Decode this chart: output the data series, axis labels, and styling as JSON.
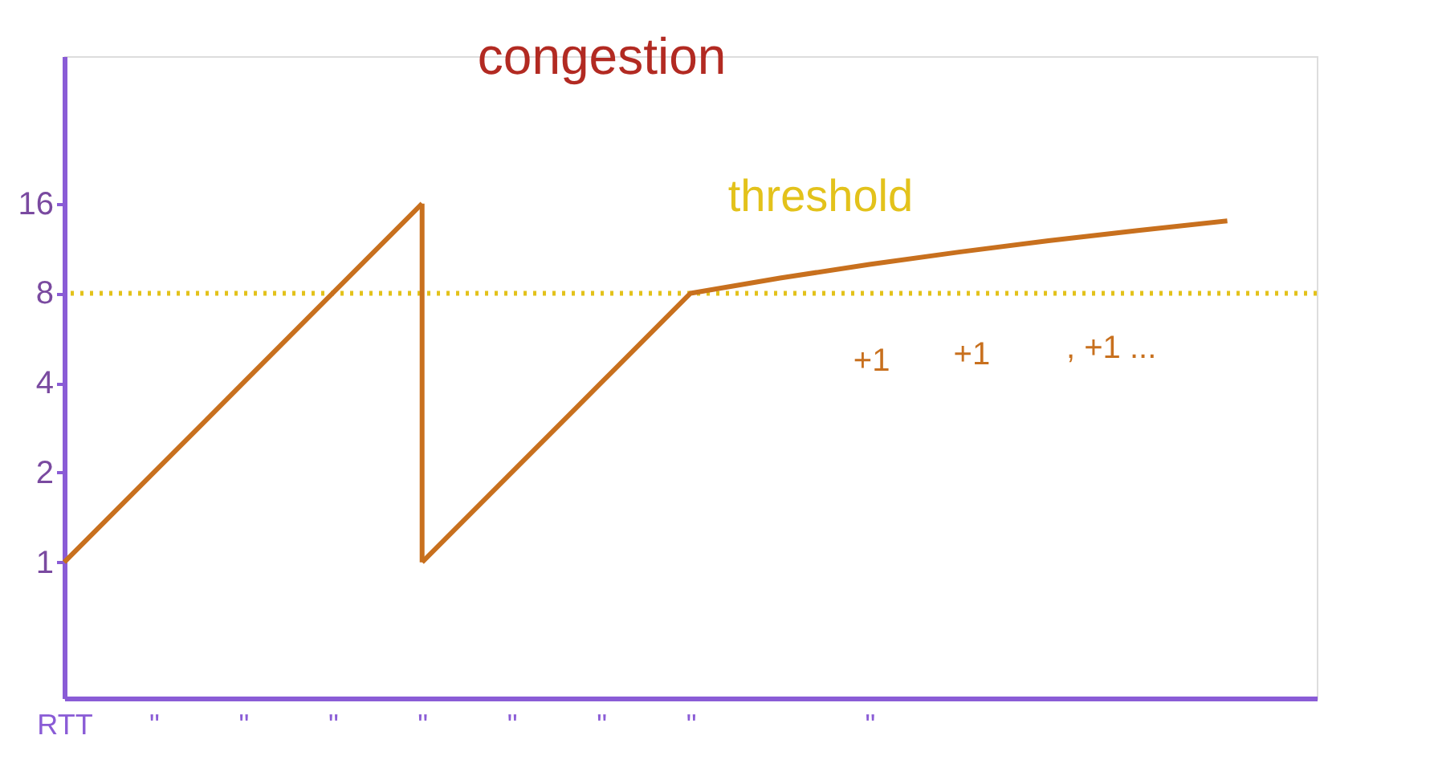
{
  "chart_data": {
    "type": "line",
    "log": "y",
    "categories": [
      "RTT",
      "\"",
      "\"",
      "\"",
      "\"",
      "\"",
      "\"",
      "\"",
      null,
      "\"",
      null,
      null,
      null,
      null,
      null
    ],
    "series": [
      {
        "color": "#c8701e",
        "values": [
          1,
          2,
          4,
          8,
          16,
          null,
          null,
          null,
          null,
          null,
          null,
          null,
          null,
          null,
          null
        ]
      },
      {
        "color": "#c8701e",
        "values": [
          null,
          null,
          null,
          null,
          1,
          2,
          4,
          8,
          9,
          10,
          11,
          12,
          13,
          14,
          null
        ],
        "errors": [
          null,
          null,
          null,
          null,
          [
            1,
            16
          ],
          null,
          null,
          null,
          null,
          null,
          null,
          null,
          null,
          null,
          null
        ]
      }
    ],
    "ylim": [
      0.35,
      50
    ],
    "yticks": [
      1,
      2,
      4,
      8,
      16
    ],
    "ref_lines": [
      {
        "axis": "y",
        "value": 8,
        "label": "threshold",
        "color": "#e3c21b",
        "line_style": "dotted"
      }
    ],
    "annotations": [
      "congestion",
      "+1",
      "+1",
      ", +1 ..."
    ],
    "grid": false,
    "marker": "none",
    "line_style": "solid"
  }
}
